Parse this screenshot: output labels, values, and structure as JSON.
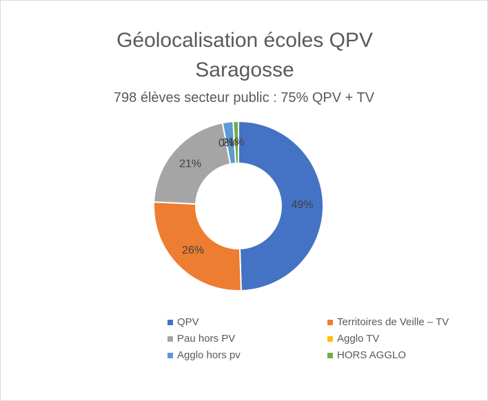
{
  "chart_data": {
    "type": "donut",
    "title": "Géolocalisation écoles QPV Saragosse",
    "subtitle": "798 élèves secteur public : 75% QPV + TV",
    "categories": [
      "QPV",
      "Territoires de Veille – TV",
      "Pau hors PV",
      "Agglo TV",
      "Agglo hors pv",
      "HORS AGGLO"
    ],
    "values": [
      49,
      26,
      21,
      0,
      2,
      1
    ],
    "value_labels": [
      "49%",
      "26%",
      "21%",
      "0%",
      "2%",
      "1%"
    ],
    "colors": [
      "#4472c4",
      "#ed7d31",
      "#a5a5a5",
      "#ffc000",
      "#5b9bd5",
      "#70ad47"
    ],
    "legend": "bottom"
  }
}
